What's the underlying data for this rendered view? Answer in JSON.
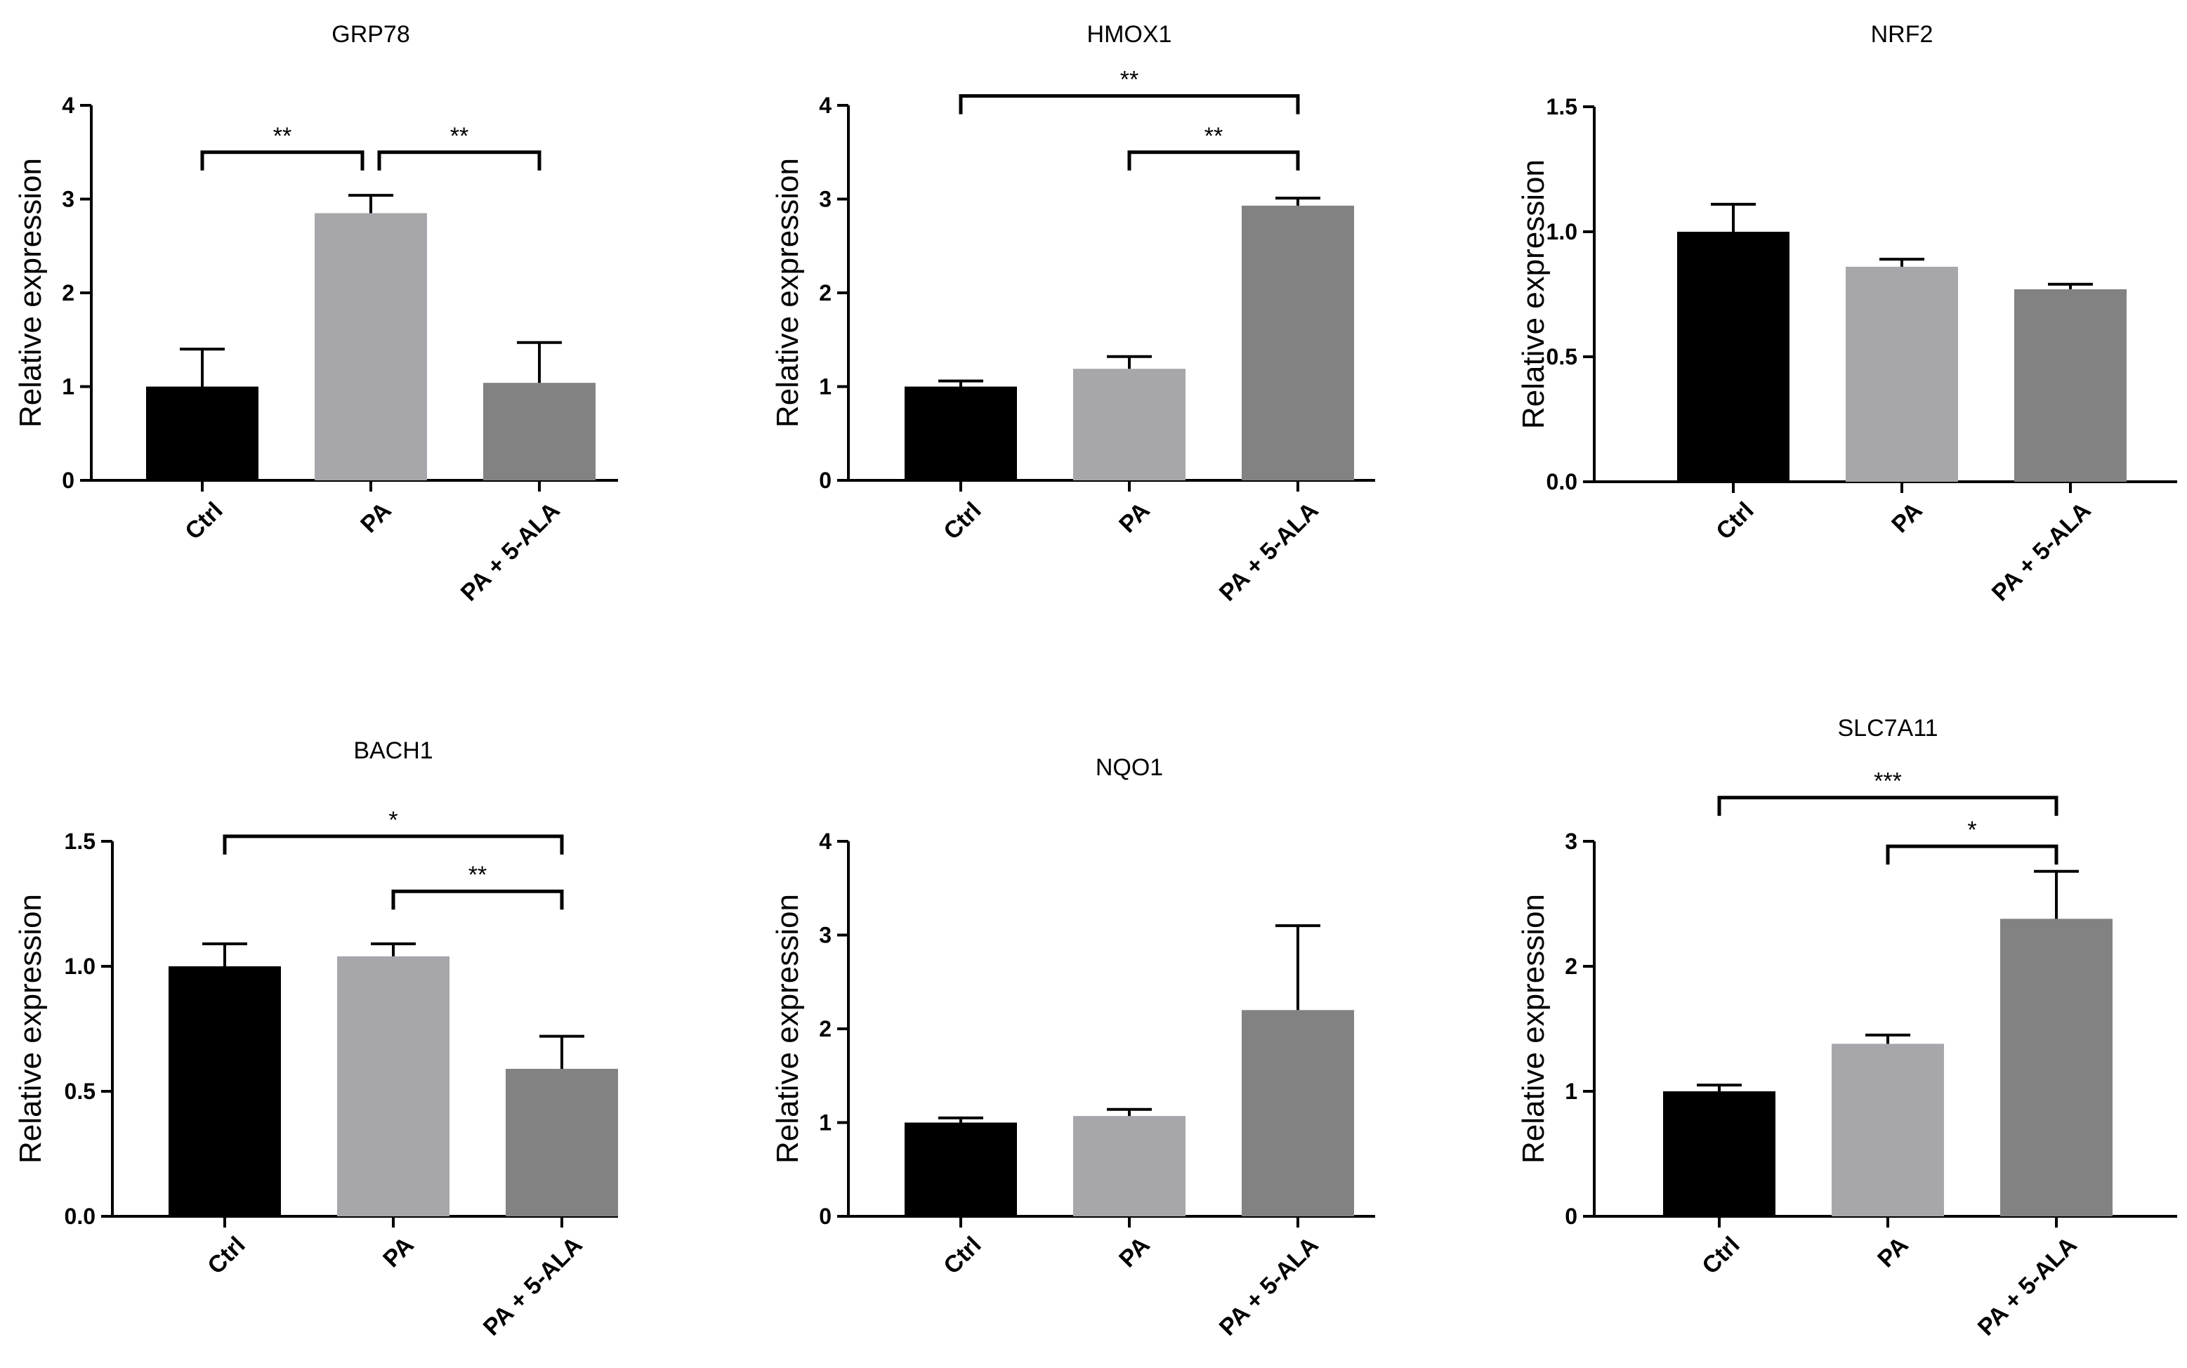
{
  "chart_data": [
    {
      "type": "bar",
      "title": "GRP78",
      "ylabel": "Relative expression",
      "categories": [
        "Ctrl",
        "PA",
        "PA + 5-ALA"
      ],
      "values": [
        1.0,
        2.85,
        1.04
      ],
      "errors": [
        0.4,
        0.19,
        0.43
      ],
      "ylim": [
        0,
        4
      ],
      "yticks": [
        "0",
        "1",
        "2",
        "3",
        "4"
      ],
      "colors": [
        "#000000",
        "#a7a6ab",
        "#828282"
      ],
      "significance": [
        {
          "from": 0,
          "to": 1,
          "level": 3.5,
          "label": "**"
        },
        {
          "from": 1,
          "to": 2,
          "level": 3.5,
          "label": "**"
        }
      ]
    },
    {
      "type": "bar",
      "title": "HMOX1",
      "ylabel": "Relative expression",
      "categories": [
        "Ctrl",
        "PA",
        "PA + 5-ALA"
      ],
      "values": [
        1.0,
        1.19,
        2.93
      ],
      "errors": [
        0.06,
        0.13,
        0.08
      ],
      "ylim": [
        0,
        4
      ],
      "yticks": [
        "0",
        "1",
        "2",
        "3",
        "4"
      ],
      "colors": [
        "#000000",
        "#a7a6ab",
        "#828282"
      ],
      "significance": [
        {
          "from": 0,
          "to": 2,
          "level": 4.1,
          "label": "**"
        },
        {
          "from": 1,
          "to": 2,
          "level": 3.5,
          "label": "**"
        }
      ]
    },
    {
      "type": "bar",
      "title": "NRF2",
      "ylabel": "Relative expression",
      "categories": [
        "Ctrl",
        "PA",
        "PA + 5-ALA"
      ],
      "values": [
        1.0,
        0.86,
        0.77
      ],
      "errors": [
        0.11,
        0.03,
        0.02
      ],
      "ylim": [
        0,
        1.5
      ],
      "yticks": [
        "0.0",
        "0.5",
        "1.0",
        "1.5"
      ],
      "colors": [
        "#000000",
        "#a7a6ab",
        "#828282"
      ],
      "significance": []
    },
    {
      "type": "bar",
      "title": "BACH1",
      "ylabel": "Relative expression",
      "categories": [
        "Ctrl",
        "PA",
        "PA + 5-ALA"
      ],
      "values": [
        1.0,
        1.04,
        0.59
      ],
      "errors": [
        0.09,
        0.05,
        0.13
      ],
      "ylim": [
        0,
        1.5
      ],
      "yticks": [
        "0.0",
        "0.5",
        "1.0",
        "1.5"
      ],
      "colors": [
        "#000000",
        "#a7a6ab",
        "#828282"
      ],
      "significance": [
        {
          "from": 0,
          "to": 2,
          "level": 1.52,
          "label": "*"
        },
        {
          "from": 1,
          "to": 2,
          "level": 1.3,
          "label": "**"
        }
      ]
    },
    {
      "type": "bar",
      "title": "NQO1",
      "ylabel": "Relative expression",
      "categories": [
        "Ctrl",
        "PA",
        "PA + 5-ALA"
      ],
      "values": [
        1.0,
        1.07,
        2.2
      ],
      "errors": [
        0.05,
        0.07,
        0.9
      ],
      "ylim": [
        0,
        4
      ],
      "yticks": [
        "0",
        "1",
        "2",
        "3",
        "4"
      ],
      "colors": [
        "#000000",
        "#a7a6ab",
        "#828282"
      ],
      "significance": []
    },
    {
      "type": "bar",
      "title": "SLC7A11",
      "ylabel": "Relative expression",
      "categories": [
        "Ctrl",
        "PA",
        "PA + 5-ALA"
      ],
      "values": [
        1.0,
        1.38,
        2.38
      ],
      "errors": [
        0.05,
        0.07,
        0.38
      ],
      "ylim": [
        0,
        3
      ],
      "yticks": [
        "0",
        "1",
        "2",
        "3"
      ],
      "colors": [
        "#000000",
        "#a7a6ab",
        "#828282"
      ],
      "significance": [
        {
          "from": 0,
          "to": 2,
          "level": 3.35,
          "label": "***"
        },
        {
          "from": 1,
          "to": 2,
          "level": 2.96,
          "label": "*"
        }
      ]
    }
  ]
}
